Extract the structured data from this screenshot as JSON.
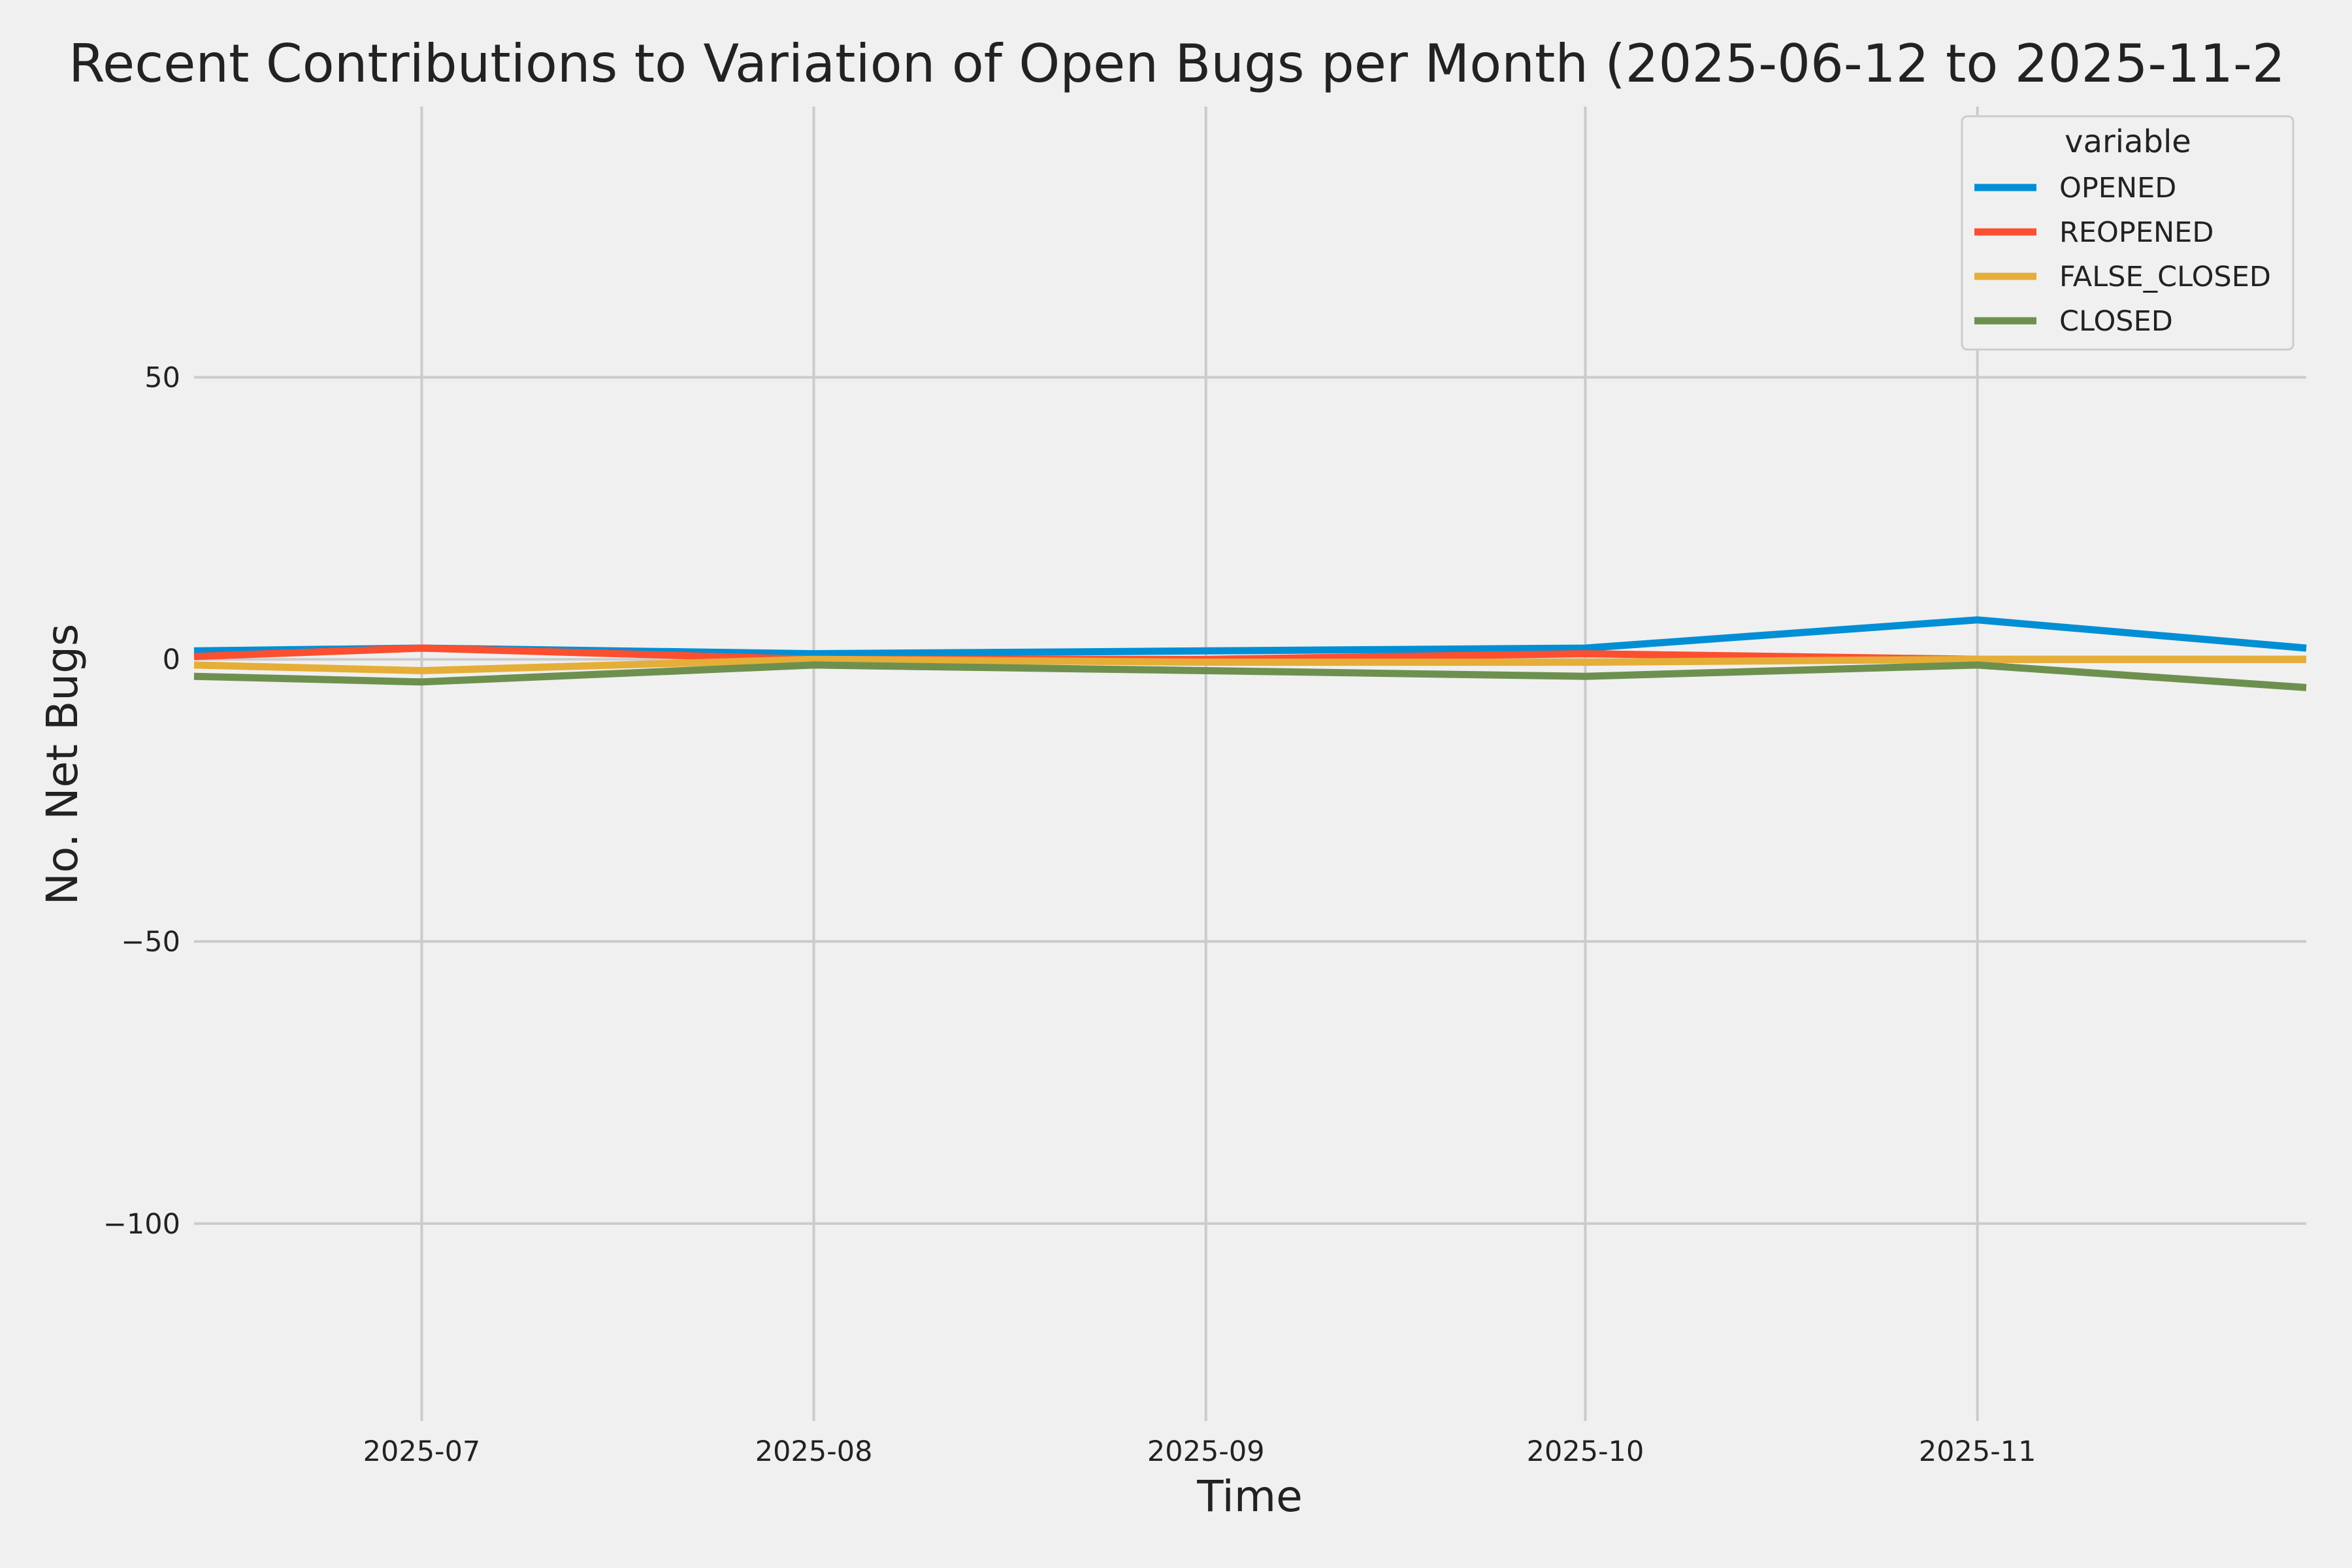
{
  "chart_data": {
    "type": "line",
    "title": "Recent Contributions to Variation of Open Bugs per Month (2025-06-12 to 2025-11-2",
    "xlabel": "Time",
    "ylabel": "No. Net Bugs",
    "x": [
      "2025-06-12",
      "2025-06-30",
      "2025-07-31",
      "2025-08-31",
      "2025-09-30",
      "2025-10-31",
      "2025-11-26"
    ],
    "xlim": [
      "2025-06-12",
      "2025-11-26"
    ],
    "ylim": [
      -135,
      98
    ],
    "x_ticks": [
      {
        "date": "2025-06-30",
        "label": "2025-07"
      },
      {
        "date": "2025-07-31",
        "label": "2025-08"
      },
      {
        "date": "2025-08-31",
        "label": "2025-09"
      },
      {
        "date": "2025-09-30",
        "label": "2025-10"
      },
      {
        "date": "2025-10-31",
        "label": "2025-11"
      }
    ],
    "y_ticks": [
      {
        "value": 50,
        "label": "50"
      },
      {
        "value": 0,
        "label": "0"
      },
      {
        "value": -50,
        "label": "−50"
      },
      {
        "value": -100,
        "label": "−100"
      }
    ],
    "grid": true,
    "legend": {
      "title": "variable",
      "position": "top-right"
    },
    "series": [
      {
        "name": "OPENED",
        "color": "#008fd5",
        "values": [
          1.5,
          2,
          1,
          1.5,
          2,
          7,
          2
        ]
      },
      {
        "name": "REOPENED",
        "color": "#fc4f30",
        "values": [
          0.5,
          2,
          0,
          0,
          1,
          0,
          0
        ]
      },
      {
        "name": "FALSE_CLOSED",
        "color": "#e5ae38",
        "values": [
          -1,
          -2,
          0,
          -0.5,
          -0.5,
          0,
          0
        ]
      },
      {
        "name": "CLOSED",
        "color": "#6d904f",
        "values": [
          -3,
          -4,
          -1,
          -2,
          -3,
          -1,
          -5
        ]
      }
    ]
  }
}
